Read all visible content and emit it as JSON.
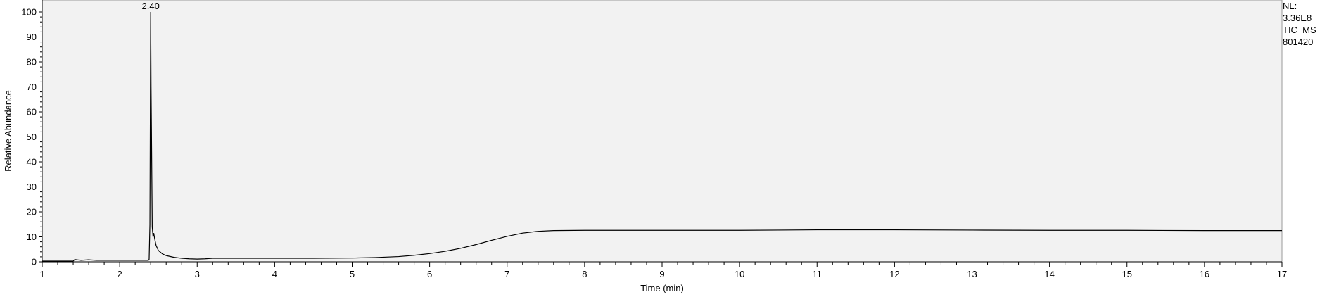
{
  "chart_data": {
    "type": "line",
    "title": "",
    "xlabel": "Time (min)",
    "ylabel": "Relative Abundance",
    "xlim": [
      1,
      17
    ],
    "ylim": [
      0,
      100
    ],
    "x_ticks": [
      1,
      2,
      3,
      4,
      5,
      6,
      7,
      8,
      9,
      10,
      11,
      12,
      13,
      14,
      15,
      16,
      17
    ],
    "y_ticks": [
      0,
      10,
      20,
      30,
      40,
      50,
      60,
      70,
      80,
      90,
      100
    ],
    "grid": false,
    "background": "#f2f2f2",
    "line_color": "#000000",
    "annotations": [
      {
        "x": 2.4,
        "y": 100,
        "text": "2.40"
      }
    ],
    "series": [
      {
        "x": [
          1.0,
          1.4,
          1.42,
          1.5,
          1.6,
          1.7,
          2.0,
          2.3,
          2.37,
          2.38,
          2.39,
          2.4,
          2.405,
          2.41,
          2.42,
          2.43,
          2.44,
          2.45,
          2.47,
          2.5,
          2.55,
          2.6,
          2.7,
          2.8,
          2.9,
          3.0,
          3.1,
          3.2,
          3.5,
          4.0,
          4.5,
          5.0,
          5.3,
          5.6,
          5.8,
          6.0,
          6.2,
          6.4,
          6.6,
          6.8,
          7.0,
          7.2,
          7.4,
          7.6,
          8.0,
          9.0,
          10.0,
          10.5,
          11.0,
          12.0,
          13.0,
          14.0,
          15.0,
          16.0,
          17.0
        ],
        "y": [
          0.3,
          0.3,
          0.9,
          0.6,
          0.8,
          0.6,
          0.6,
          0.6,
          0.6,
          1.0,
          15.0,
          100.0,
          70.0,
          53.0,
          14.0,
          10.0,
          11.5,
          9.5,
          6.5,
          4.5,
          3.2,
          2.5,
          1.8,
          1.4,
          1.2,
          1.1,
          1.2,
          1.4,
          1.4,
          1.4,
          1.4,
          1.5,
          1.7,
          2.1,
          2.6,
          3.3,
          4.2,
          5.4,
          6.9,
          8.6,
          10.2,
          11.5,
          12.2,
          12.5,
          12.6,
          12.6,
          12.6,
          12.7,
          12.8,
          12.8,
          12.7,
          12.6,
          12.6,
          12.5,
          12.5
        ]
      }
    ]
  },
  "info": {
    "nl_label": "NL:",
    "nl_value": "3.36E8",
    "trace_label": "TIC  MS",
    "sample_id": "801420"
  }
}
